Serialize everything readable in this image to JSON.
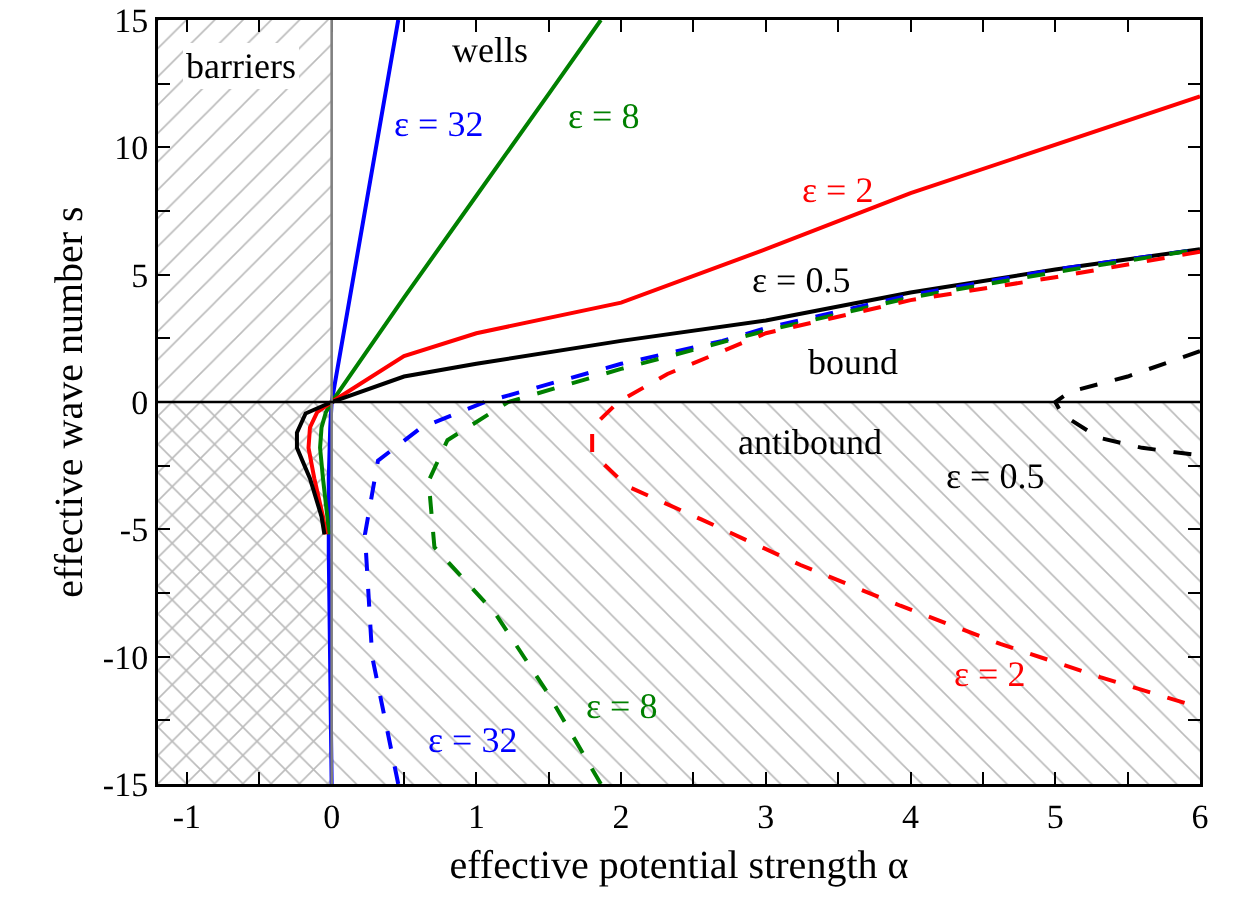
{
  "chart_data": {
    "type": "line",
    "xlabel": "effective potential strength α",
    "ylabel": "effective wave number s",
    "xlim": [
      -1.2,
      6
    ],
    "ylim": [
      -15,
      15
    ],
    "xticks": [
      -1,
      {
        "value": -0.5,
        "label": null
      },
      0,
      {
        "value": 0.5,
        "label": null
      },
      1,
      {
        "value": 1.5,
        "label": null
      },
      2,
      {
        "value": 2.5,
        "label": null
      },
      3,
      {
        "value": 3.5,
        "label": null
      },
      4,
      {
        "value": 4.5,
        "label": null
      },
      5,
      {
        "value": 5.5,
        "label": null
      },
      6
    ],
    "yticks": [
      -15,
      {
        "value": -12.5,
        "label": null
      },
      -10,
      {
        "value": -7.5,
        "label": null
      },
      -5,
      {
        "value": -2.5,
        "label": null
      },
      0,
      {
        "value": 2.5,
        "label": null
      },
      5,
      {
        "value": 7.5,
        "label": null
      },
      10,
      {
        "value": 12.5,
        "label": null
      },
      15
    ],
    "grid": false,
    "legend": false,
    "marker": "none",
    "bands": [
      {
        "axis": "x",
        "from": -1.2,
        "to": 0,
        "label": "barriers",
        "color": "#bbbbbb"
      },
      {
        "axis": "y",
        "from": -15,
        "to": 0,
        "label": "antibound",
        "color": "#bbbbbb"
      }
    ],
    "ref_lines": [
      {
        "axis": "x",
        "value": 0,
        "color": "#808080"
      },
      {
        "axis": "y",
        "value": 0,
        "color": "#000000"
      }
    ],
    "annotations": [
      "wells",
      "bound"
    ],
    "series": [
      {
        "name": "ε = 32",
        "color": "#0000ff",
        "line_style": "solid",
        "x": [
          0,
          -0.02,
          -0.02,
          -0.01,
          0,
          0.46
        ],
        "values": [
          -15,
          -6,
          -3,
          -1,
          0,
          15
        ]
      },
      {
        "name": "ε = 8",
        "color": "#008000",
        "line_style": "solid",
        "x": [
          -0.02,
          -0.03,
          -0.06,
          -0.08,
          -0.07,
          -0.04,
          0,
          0.5,
          1,
          1.5,
          1.86
        ],
        "values": [
          -5.2,
          -4.5,
          -3,
          -1.8,
          -1,
          -0.4,
          0,
          4.1,
          8.1,
          12.1,
          15
        ]
      },
      {
        "name": "ε = 2",
        "color": "#ff0000",
        "line_style": "solid",
        "x": [
          -0.04,
          -0.06,
          -0.12,
          -0.16,
          -0.15,
          -0.1,
          0,
          0.5,
          1,
          2,
          3,
          4,
          6
        ],
        "values": [
          -5.2,
          -4.5,
          -3,
          -1.8,
          -1,
          -0.4,
          0,
          1.8,
          2.7,
          3.9,
          6,
          8.2,
          12
        ]
      },
      {
        "name": "ε = 0.5",
        "color": "#000000",
        "line_style": "solid",
        "x": [
          -0.05,
          -0.07,
          -0.15,
          -0.24,
          -0.24,
          -0.18,
          0,
          0.5,
          1,
          2,
          3,
          4,
          5,
          6
        ],
        "values": [
          -5.2,
          -4.5,
          -3,
          -1.8,
          -1.2,
          -0.45,
          0,
          1,
          1.5,
          2.4,
          3.2,
          4.3,
          5.2,
          6
        ]
      },
      {
        "name": "ε = 32",
        "color": "#0000ff",
        "line_style": "dashed",
        "x": [
          0.46,
          0.28,
          0.23,
          0.32,
          0.62,
          1.06,
          2,
          2.7,
          3,
          4,
          5,
          6
        ],
        "values": [
          -15,
          -10,
          -5.2,
          -2.3,
          -1,
          0,
          1.5,
          2.4,
          2.9,
          4.2,
          5.2,
          6
        ]
      },
      {
        "name": "ε = 8",
        "color": "#008000",
        "line_style": "dashed",
        "x": [
          1.86,
          1.49,
          1.13,
          0.71,
          0.67,
          0.8,
          1.22,
          2,
          3,
          4,
          5,
          6
        ],
        "values": [
          -15,
          -11.4,
          -8.3,
          -5.7,
          -3.1,
          -1.5,
          0,
          1.3,
          2.8,
          4.1,
          5.1,
          6
        ]
      },
      {
        "name": "ε = 2",
        "color": "#ff0000",
        "line_style": "dashed",
        "x": [
          6,
          5,
          4,
          3,
          2.32,
          1.98,
          1.8,
          1.8,
          2.04,
          2.55,
          3.24,
          3.93,
          4.62,
          5.31,
          6
        ],
        "values": [
          5.9,
          4.9,
          4,
          2.7,
          1.1,
          0,
          -1,
          -2,
          -3.3,
          -4.6,
          -6.4,
          -8,
          -9.5,
          -10.8,
          -12
        ]
      },
      {
        "name": "ε = 0.5",
        "color": "#000000",
        "line_style": "dashed",
        "x": [
          6,
          5.5,
          5.1,
          5,
          5.05,
          5.3,
          5.6,
          6
        ],
        "values": [
          2,
          1,
          0.4,
          0,
          -0.5,
          -1.4,
          -1.8,
          -2.1
        ]
      }
    ]
  }
}
